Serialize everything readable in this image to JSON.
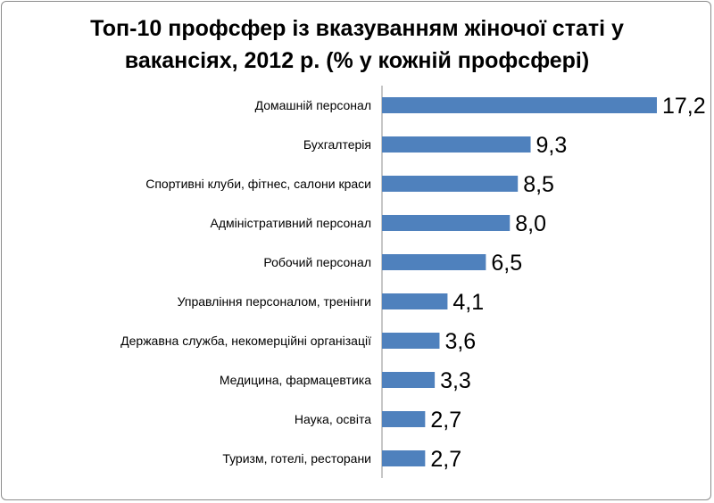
{
  "chart_data": {
    "type": "bar",
    "orientation": "horizontal",
    "title": "Топ-10 профсфер із вказуванням жіночої статі у вакансіях, 2012 р. (% у кожній профсфері)",
    "categories": [
      "Домашній персонал",
      "Бухгалтерія",
      "Спортивні клуби, фітнес, салони краси",
      "Адміністративний персонал",
      "Робочий персонал",
      "Управління персоналом, тренінги",
      "Державна служба, некомерційні організації",
      "Медицина, фармацевтика",
      "Наука, освіта",
      "Туризм, готелі, ресторани"
    ],
    "values": [
      17.2,
      9.3,
      8.5,
      8.0,
      6.5,
      4.1,
      3.6,
      3.3,
      2.7,
      2.7
    ],
    "value_labels": [
      "17,2",
      "9,3",
      "8,5",
      "8,0",
      "6,5",
      "4,1",
      "3,6",
      "3,3",
      "2,7",
      "2,7"
    ],
    "xlim": [
      0,
      17.2
    ],
    "grid": false,
    "legend": "none",
    "bar_color": "#4f81bd"
  }
}
